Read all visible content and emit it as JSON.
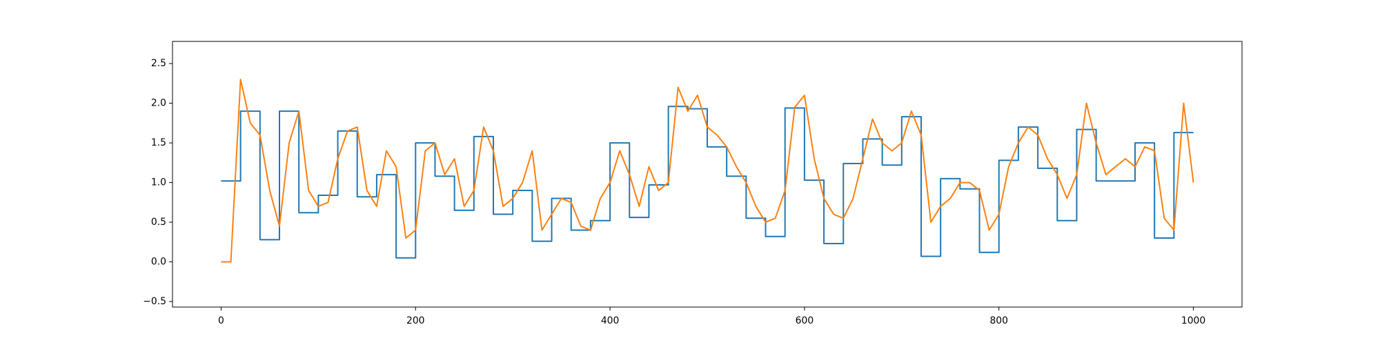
{
  "chart_data": {
    "type": "line",
    "xlim": [
      -50,
      1050
    ],
    "ylim": [
      -0.57,
      2.78
    ],
    "xticks": [
      0,
      200,
      400,
      600,
      800,
      1000
    ],
    "yticks": [
      {
        "value": -0.5,
        "label": "−0.5"
      },
      {
        "value": 0,
        "label": "0.0"
      },
      0.5,
      {
        "value": 1,
        "label": "1.0"
      },
      1.5,
      {
        "value": 2,
        "label": "2.0"
      },
      2.5
    ],
    "series": [
      {
        "color": "#1f77b4",
        "step": "post",
        "x": [
          0,
          20,
          40,
          60,
          80,
          100,
          120,
          140,
          160,
          180,
          200,
          220,
          240,
          260,
          280,
          300,
          320,
          340,
          360,
          380,
          400,
          420,
          440,
          460,
          480,
          500,
          520,
          540,
          560,
          580,
          600,
          620,
          640,
          660,
          680,
          700,
          720,
          740,
          760,
          780,
          800,
          820,
          840,
          860,
          880,
          900,
          920,
          940,
          960,
          980,
          1000
        ],
        "values": [
          1.02,
          1.9,
          0.28,
          1.9,
          0.62,
          0.84,
          1.65,
          0.82,
          1.1,
          0.05,
          1.5,
          1.08,
          0.65,
          1.58,
          0.6,
          0.9,
          0.26,
          0.8,
          0.4,
          0.52,
          1.5,
          0.56,
          0.97,
          1.96,
          1.93,
          1.45,
          1.08,
          0.55,
          0.32,
          1.94,
          1.03,
          0.23,
          1.24,
          1.55,
          1.22,
          1.83,
          0.07,
          1.05,
          0.92,
          0.12,
          1.28,
          1.7,
          1.18,
          0.52,
          1.67,
          1.02,
          1.02,
          1.5,
          0.3,
          1.63,
          1.63
        ]
      },
      {
        "color": "#ff7f0e",
        "x": [
          0,
          10,
          20,
          30,
          40,
          50,
          60,
          70,
          80,
          90,
          100,
          110,
          120,
          130,
          140,
          150,
          160,
          170,
          180,
          190,
          200,
          210,
          220,
          230,
          240,
          250,
          260,
          270,
          280,
          290,
          300,
          310,
          320,
          330,
          340,
          350,
          360,
          370,
          380,
          390,
          400,
          410,
          420,
          430,
          440,
          450,
          460,
          470,
          480,
          490,
          500,
          510,
          520,
          530,
          540,
          550,
          560,
          570,
          580,
          590,
          600,
          610,
          620,
          630,
          640,
          650,
          660,
          670,
          680,
          690,
          700,
          710,
          720,
          730,
          740,
          750,
          760,
          770,
          780,
          790,
          800,
          810,
          820,
          830,
          840,
          850,
          860,
          870,
          880,
          890,
          900,
          910,
          920,
          930,
          940,
          950,
          960,
          970,
          980,
          990,
          1000
        ],
        "values": [
          0,
          0,
          2.3,
          1.75,
          1.6,
          0.9,
          0.45,
          1.5,
          1.9,
          0.9,
          0.7,
          0.75,
          1.3,
          1.65,
          1.7,
          0.9,
          0.7,
          1.4,
          1.2,
          0.3,
          0.4,
          1.4,
          1.5,
          1.1,
          1.3,
          0.7,
          0.9,
          1.7,
          1.4,
          0.7,
          0.8,
          1.0,
          1.4,
          0.4,
          0.6,
          0.8,
          0.75,
          0.45,
          0.4,
          0.8,
          1.0,
          1.4,
          1.1,
          0.7,
          1.2,
          0.9,
          1.0,
          2.2,
          1.9,
          2.1,
          1.7,
          1.6,
          1.45,
          1.2,
          1.0,
          0.7,
          0.5,
          0.55,
          0.9,
          1.95,
          2.1,
          1.3,
          0.8,
          0.6,
          0.55,
          0.8,
          1.3,
          1.8,
          1.5,
          1.4,
          1.5,
          1.9,
          1.6,
          0.5,
          0.7,
          0.8,
          1.0,
          1.0,
          0.9,
          0.4,
          0.6,
          1.2,
          1.5,
          1.7,
          1.6,
          1.3,
          1.1,
          0.8,
          1.1,
          2.0,
          1.5,
          1.1,
          1.2,
          1.3,
          1.2,
          1.45,
          1.4,
          0.55,
          0.4,
          2.0,
          1.0
        ]
      }
    ]
  }
}
